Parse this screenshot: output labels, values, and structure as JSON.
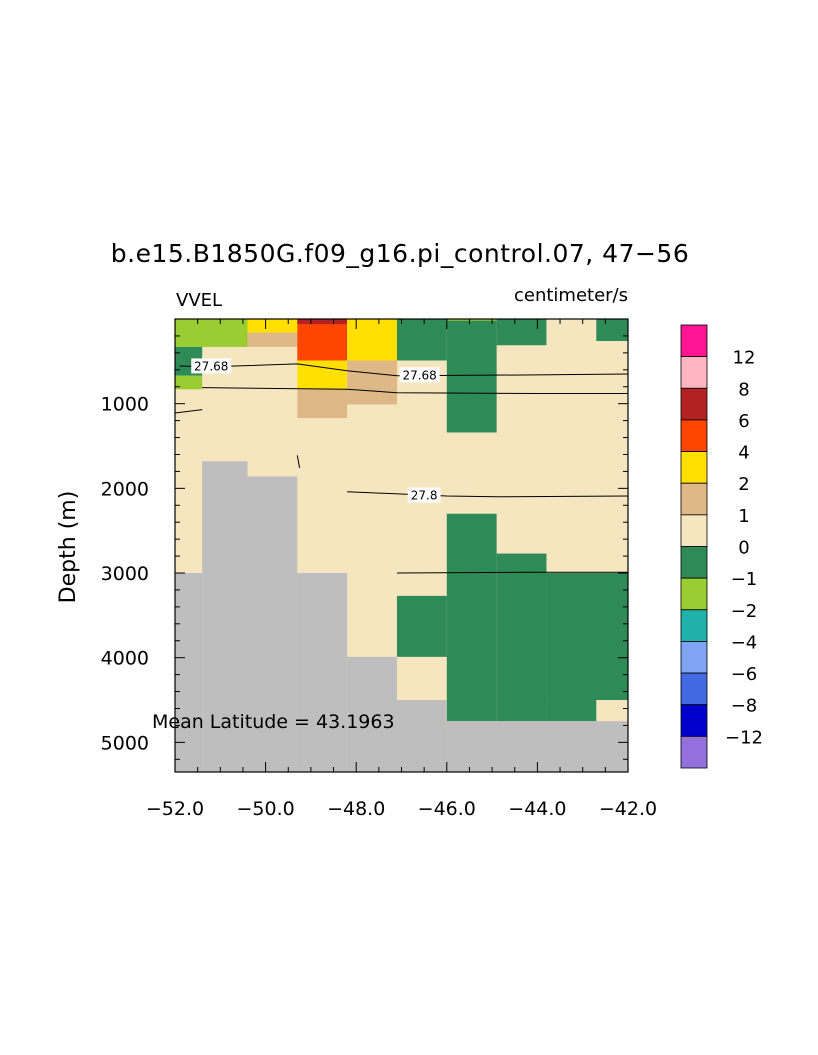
{
  "chart_data": {
    "type": "heatmap",
    "title": "b.e15.B1850G.f09_g16.pi_control.07, 47−56",
    "left_label": "VVEL",
    "right_label": "centimeter/s",
    "ylabel": "Depth (m)",
    "annotation": "Mean Latitude = 43.1963",
    "xlim": [
      -52.0,
      -42.0
    ],
    "ylim": [
      5350,
      0
    ],
    "x_ticks": [
      -52.0,
      -50.0,
      -48.0,
      -46.0,
      -44.0,
      -42.0
    ],
    "x_tick_labels": [
      "−52.0",
      "−50.0",
      "−48.0",
      "−46.0",
      "−44.0",
      "−42.0"
    ],
    "y_ticks": [
      1000,
      2000,
      3000,
      4000,
      5000
    ],
    "y_tick_labels": [
      "1000",
      "2000",
      "3000",
      "4000",
      "5000"
    ],
    "colorbar": {
      "boundary_labels": [
        "12",
        "8",
        "6",
        "4",
        "2",
        "1",
        "0",
        "−1",
        "−2",
        "−4",
        "−6",
        "−8",
        "−12"
      ],
      "colors": [
        "#FF1493",
        "#FFB6C1",
        "#B22222",
        "#FF4500",
        "#FFE000",
        "#DEB887",
        "#F5E6C0",
        "#2E8B57",
        "#9ACD32",
        "#20B2AA",
        "#7FA5F2",
        "#4169E1",
        "#0000CD",
        "#9370DB"
      ]
    },
    "land_color": "#BEBEBE",
    "cells": [
      {
        "x0": -52.0,
        "x1": -50.4,
        "d0": 0,
        "d1": 330,
        "v": -1.5
      },
      {
        "x0": -50.4,
        "x1": -49.3,
        "d0": 0,
        "d1": 160,
        "v": 3
      },
      {
        "x0": -50.4,
        "x1": -49.3,
        "d0": 160,
        "d1": 330,
        "v": 1.5
      },
      {
        "x0": -49.3,
        "x1": -48.2,
        "d0": 0,
        "d1": 490,
        "v": 5
      },
      {
        "x0": -49.3,
        "x1": -48.2,
        "d0": 0,
        "d1": 60,
        "v": 7
      },
      {
        "x0": -49.3,
        "x1": -48.2,
        "d0": 490,
        "d1": 830,
        "v": 3
      },
      {
        "x0": -48.2,
        "x1": -47.1,
        "d0": 0,
        "d1": 490,
        "v": 3
      },
      {
        "x0": -49.3,
        "x1": -48.2,
        "d0": 830,
        "d1": 1170,
        "v": 1.5
      },
      {
        "x0": -48.2,
        "x1": -47.1,
        "d0": 490,
        "d1": 1010,
        "v": 1.5
      },
      {
        "x0": -47.1,
        "x1": -46.0,
        "d0": 0,
        "d1": 490,
        "v": -0.5
      },
      {
        "x0": -46.0,
        "x1": -44.9,
        "d0": 0,
        "d1": 1340,
        "v": -0.5
      },
      {
        "x0": -44.9,
        "x1": -43.8,
        "d0": 0,
        "d1": 310,
        "v": -0.5
      },
      {
        "x0": -46.0,
        "x1": -44.9,
        "d0": 0,
        "d1": 20,
        "v": -1.5
      },
      {
        "x0": -42.7,
        "x1": -42.0,
        "d0": 0,
        "d1": 260,
        "v": -0.5
      },
      {
        "x0": -52.0,
        "x1": -51.4,
        "d0": 330,
        "d1": 670,
        "v": -0.5
      },
      {
        "x0": -52.0,
        "x1": -51.4,
        "d0": 670,
        "d1": 830,
        "v": -1.5
      },
      {
        "x0": -46.0,
        "x1": -44.9,
        "d0": 2300,
        "d1": 4750,
        "v": -0.5
      },
      {
        "x0": -44.9,
        "x1": -43.8,
        "d0": 2770,
        "d1": 4750,
        "v": -0.5
      },
      {
        "x0": -43.8,
        "x1": -42.0,
        "d0": 3000,
        "d1": 4500,
        "v": -0.5
      },
      {
        "x0": -43.8,
        "x1": -42.7,
        "d0": 4500,
        "d1": 4750,
        "v": -0.5
      },
      {
        "x0": -47.1,
        "x1": -46.0,
        "d0": 3270,
        "d1": 3990,
        "v": -0.5
      }
    ],
    "land": [
      {
        "x0": -52.0,
        "x1": -51.4,
        "d0": 3000,
        "d1": 5350
      },
      {
        "x0": -51.4,
        "x1": -50.4,
        "d0": 1680,
        "d1": 5350
      },
      {
        "x0": -50.4,
        "x1": -49.3,
        "d0": 1860,
        "d1": 5350
      },
      {
        "x0": -49.3,
        "x1": -48.2,
        "d0": 3000,
        "d1": 5350
      },
      {
        "x0": -48.2,
        "x1": -47.1,
        "d0": 3990,
        "d1": 5350
      },
      {
        "x0": -47.1,
        "x1": -46.0,
        "d0": 4500,
        "d1": 5350
      },
      {
        "x0": -46.0,
        "x1": -42.0,
        "d0": 4750,
        "d1": 5350
      }
    ],
    "contours": [
      {
        "level": "27.68",
        "points": [
          [
            -51.9,
            555
          ],
          [
            -51.2,
            565
          ],
          [
            -49.3,
            530
          ],
          [
            -48.2,
            610
          ],
          [
            -47.1,
            670
          ],
          [
            -44.0,
            660
          ],
          [
            -42.0,
            650
          ]
        ],
        "label_x": -51.2,
        "label_d": 560
      },
      {
        "level": "27.68",
        "points": [
          [
            -51.4,
            810
          ],
          [
            -48.2,
            830
          ],
          [
            -47.1,
            870
          ],
          [
            -44.0,
            880
          ],
          [
            -42.0,
            880
          ]
        ],
        "label_x": -46.6,
        "label_d": 665
      },
      {
        "level": "27.8",
        "points": [
          [
            -48.2,
            2040
          ],
          [
            -46.0,
            2090
          ],
          [
            -44.9,
            2100
          ],
          [
            -42.0,
            2090
          ]
        ],
        "label_x": -46.5,
        "label_d": 2085
      },
      {
        "level": "",
        "points": [
          [
            -47.1,
            3000
          ],
          [
            -44.0,
            2990
          ],
          [
            -42.0,
            2990
          ]
        ]
      },
      {
        "level": "",
        "points": [
          [
            -52.0,
            1110
          ],
          [
            -51.4,
            1070
          ]
        ]
      },
      {
        "level": "",
        "points": [
          [
            -49.3,
            1610
          ],
          [
            -49.25,
            1760
          ]
        ]
      }
    ]
  }
}
